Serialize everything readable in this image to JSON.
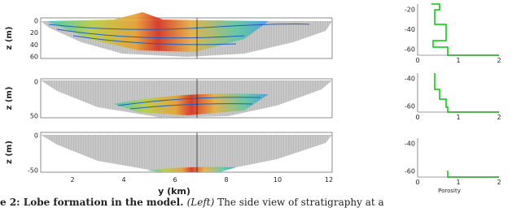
{
  "left": {
    "y_label": "z (m)",
    "x_label": "y (km)",
    "xticks": [
      "2",
      "4",
      "6",
      "8",
      "10",
      "12"
    ],
    "panels": [
      {
        "yticks": [
          "0",
          "20",
          "40",
          "60"
        ]
      },
      {
        "yticks": [
          "0",
          "50"
        ]
      },
      {
        "yticks": [
          "0",
          "-50"
        ]
      }
    ]
  },
  "right": {
    "x_label": "Porosity",
    "panels": [
      {
        "yticks": [
          "-20",
          "-40",
          "-60"
        ],
        "xticks": [
          "0",
          "1",
          "2"
        ]
      },
      {
        "yticks": [
          "-40",
          "-60"
        ],
        "xticks": [
          "0",
          "1",
          "2"
        ]
      },
      {
        "yticks": [
          "-40",
          "-60"
        ],
        "xticks": [
          "0",
          "1",
          "2"
        ]
      }
    ]
  },
  "caption": {
    "bold": "e 2: Lobe formation in the model.",
    "italic": "(Left)",
    "rest": "The side view of stratigraphy at a"
  }
}
